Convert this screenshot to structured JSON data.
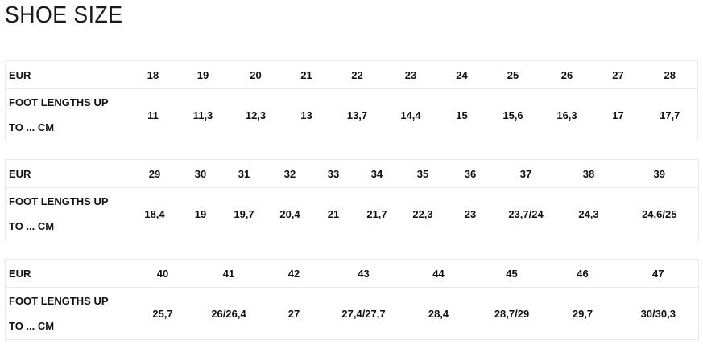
{
  "title": "SHOE SIZE",
  "eur_label": "EUR",
  "length_label_line1": "FOOT LENGTHS UP",
  "length_label_line2": "TO ... CM",
  "tables": [
    {
      "eur": [
        "18",
        "19",
        "20",
        "21",
        "22",
        "23",
        "24",
        "25",
        "26",
        "27",
        "28"
      ],
      "lengths": [
        "11",
        "11,3",
        "12,3",
        "13",
        "13,7",
        "14,4",
        "15",
        "15,6",
        "16,3",
        "17",
        "17,7"
      ]
    },
    {
      "eur": [
        "29",
        "30",
        "31",
        "32",
        "33",
        "34",
        "35",
        "36",
        "37",
        "38",
        "39"
      ],
      "lengths": [
        "18,4",
        "19",
        "19,7",
        "20,4",
        "21",
        "21,7",
        "22,3",
        "23",
        "23,7/24",
        "24,3",
        "24,6/25"
      ]
    },
    {
      "eur": [
        "40",
        "41",
        "42",
        "43",
        "44",
        "45",
        "46",
        "47"
      ],
      "lengths": [
        "25,7",
        "26/26,4",
        "27",
        "27,4/27,7",
        "28,4",
        "28,7/29",
        "29,7",
        "30/30,3"
      ]
    }
  ]
}
